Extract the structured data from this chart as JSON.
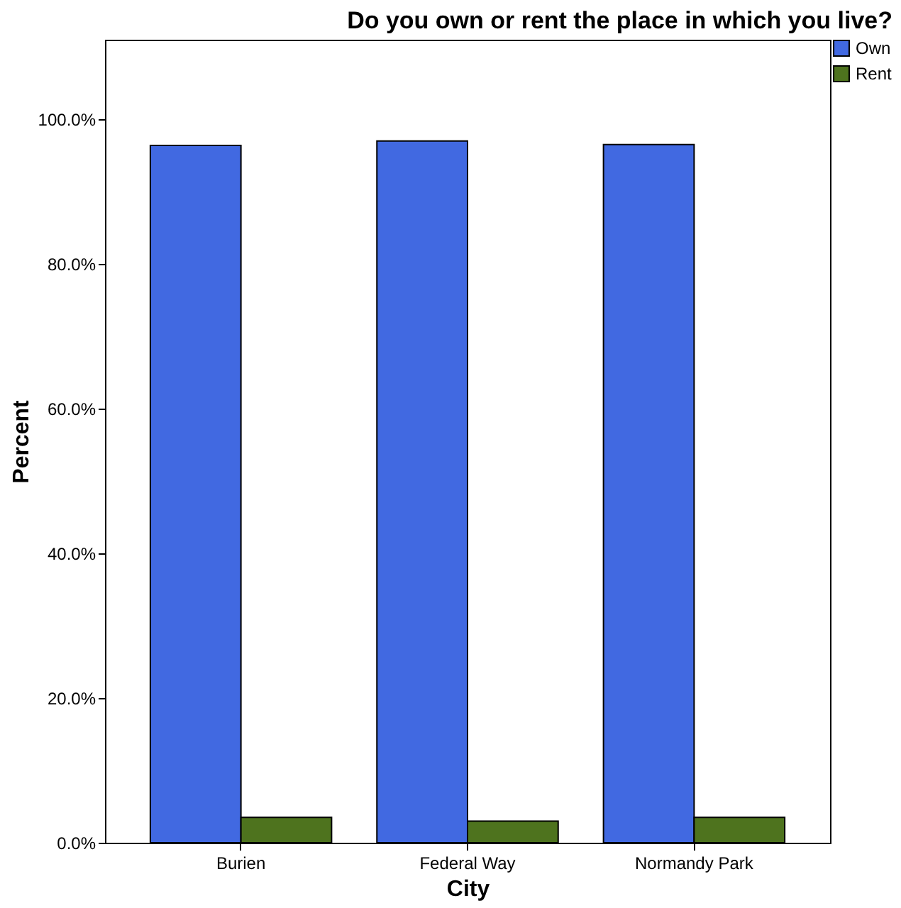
{
  "chart_data": {
    "type": "bar",
    "title": "Do you own or rent the place in which you live?",
    "xlabel": "City",
    "ylabel": "Percent",
    "categories": [
      "Burien",
      "Federal Way",
      "Normandy Park"
    ],
    "series": [
      {
        "name": "Own",
        "color": "#4169e1",
        "values": [
          96.4,
          97.0,
          96.5
        ]
      },
      {
        "name": "Rent",
        "color": "#4e731e",
        "values": [
          3.5,
          3.0,
          3.5
        ]
      }
    ],
    "ylim": [
      0,
      111
    ],
    "yticks": [
      {
        "value": 0,
        "label": "0.0%"
      },
      {
        "value": 20,
        "label": "20.0%"
      },
      {
        "value": 40,
        "label": "40.0%"
      },
      {
        "value": 60,
        "label": "60.0%"
      },
      {
        "value": 80,
        "label": "80.0%"
      },
      {
        "value": 100,
        "label": "100.0%"
      }
    ],
    "grid": false,
    "legend": "top right"
  }
}
